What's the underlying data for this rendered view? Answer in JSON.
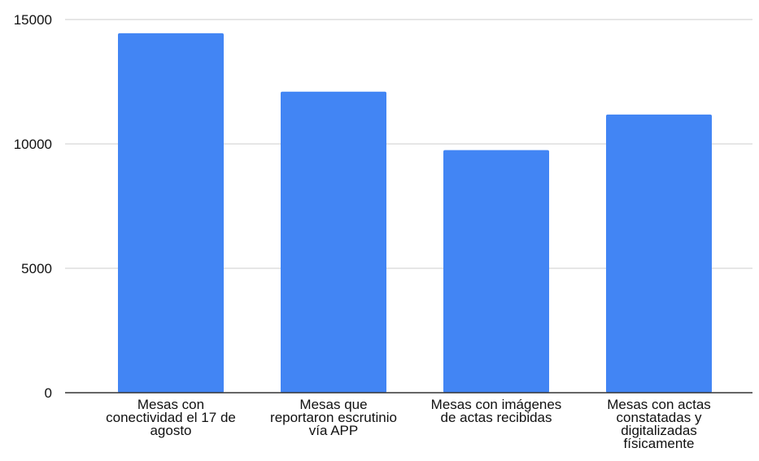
{
  "chart_data": {
    "type": "bar",
    "categories": [
      "Mesas con conectividad el 17 de agosto",
      "Mesas que reportaron escrutinio vía APP",
      "Mesas con imágenes de actas recibidas",
      "Mesas con actas constatadas y digitalizadas físicamente"
    ],
    "category_lines": [
      [
        "Mesas con",
        "conectividad el 17 de",
        "agosto"
      ],
      [
        "Mesas que",
        "reportaron escrutinio",
        "vía APP"
      ],
      [
        "Mesas con imágenes",
        "de actas recibidas"
      ],
      [
        "Mesas con actas",
        "constatadas y",
        "digitalizadas",
        "físicamente"
      ]
    ],
    "values": [
      14450,
      12100,
      9750,
      11180
    ],
    "yticks": [
      0,
      5000,
      10000,
      15000
    ],
    "ylim": [
      0,
      15000
    ],
    "grid": true,
    "colors": {
      "bar": "#4285f4",
      "grid": "#cccccc",
      "axis": "#333333"
    }
  }
}
